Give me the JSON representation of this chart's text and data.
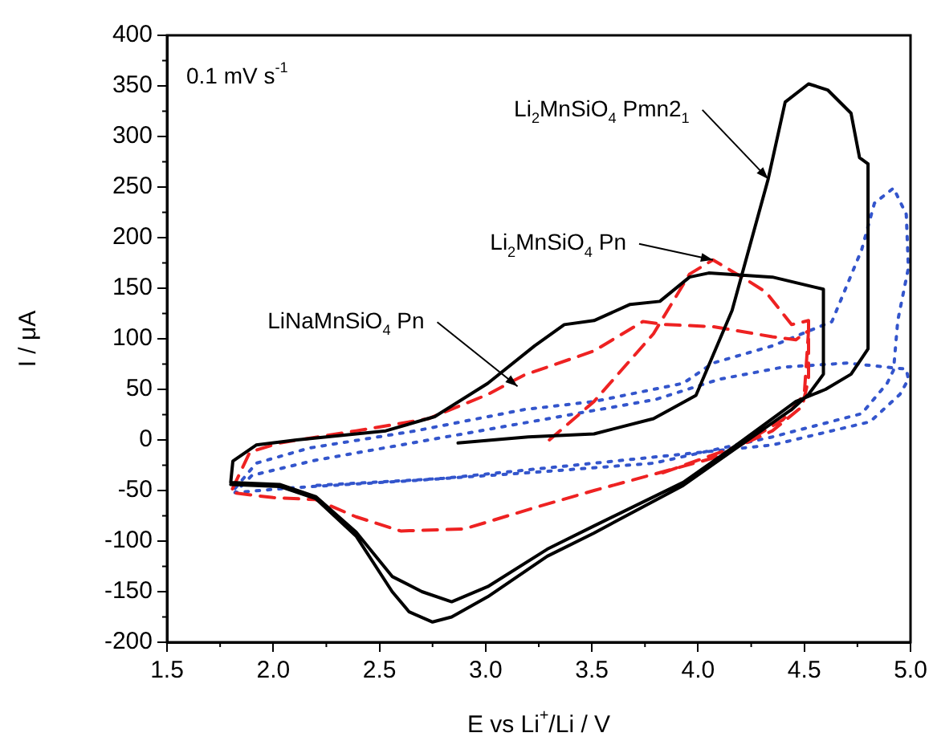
{
  "chart_data": {
    "type": "line",
    "xlabel": "E vs Li$^{+}$/Li / V",
    "ylabel": "I / μA",
    "xlim": [
      1.5,
      5.0
    ],
    "xticks": [
      {
        "value": 1.5,
        "label": "1.5"
      },
      {
        "value": 2.0,
        "label": "2.0"
      },
      {
        "value": 2.5,
        "label": "2.5"
      },
      {
        "value": 3.0,
        "label": "3.0"
      },
      {
        "value": 3.5,
        "label": "3.5"
      },
      {
        "value": 4.0,
        "label": "4.0"
      },
      {
        "value": 4.5,
        "label": "4.5"
      },
      {
        "value": 5.0,
        "label": "5.0"
      }
    ],
    "ylim": [
      -200,
      400
    ],
    "yticks": [
      -200,
      -150,
      -100,
      -50,
      0,
      50,
      100,
      150,
      200,
      250,
      300,
      350,
      400
    ],
    "grid": false,
    "legend": false,
    "marker": "none",
    "annotations": [
      "0.1 mV s$^{-1}$",
      {
        "text": "Li$_{2}$MnSiO$_{4}$ Pmn2$_{1}$",
        "x": 4.33,
        "y": 258
      },
      {
        "text": "Li$_{2}$MnSiO$_{4}$ Pn",
        "x": 4.07,
        "y": 178
      },
      {
        "text": "LiNaMnSiO$_{4}$ Pn",
        "x": 3.15,
        "y": 53
      }
    ],
    "series": [
      {
        "color": "#000000",
        "line_style": "solid",
        "x": [
          2.87,
          3.2,
          3.51,
          3.79,
          3.99,
          4.16,
          4.33,
          4.41,
          4.52,
          4.61,
          4.72,
          4.76,
          4.8,
          4.8,
          4.72,
          4.6,
          4.46,
          4.18,
          3.93,
          3.51,
          3.29,
          3.01,
          2.84,
          2.7,
          2.56,
          2.39,
          2.2,
          2.03,
          1.8,
          1.81,
          1.92,
          2.11,
          2.53,
          2.76,
          3.01,
          3.23,
          3.37,
          3.51,
          3.68,
          3.82,
          3.96,
          4.05,
          4.35,
          4.59,
          4.59,
          4.52,
          4.44,
          4.18,
          3.93,
          3.51,
          3.29,
          3.01,
          2.84,
          2.75,
          2.64,
          2.56,
          2.39,
          2.2,
          2.03,
          1.8
        ],
        "values": [
          -3,
          3,
          6,
          21,
          44,
          128,
          258,
          334,
          352,
          346,
          323,
          279,
          273,
          90,
          65,
          50,
          38,
          -5,
          -42,
          -85,
          -108,
          -145,
          -160,
          -150,
          -135,
          -91,
          -56,
          -44,
          -42,
          -21,
          -5,
          0,
          9,
          23,
          56,
          93,
          114,
          118,
          134,
          137,
          161,
          165,
          161,
          149,
          65,
          45,
          30,
          -8,
          -45,
          -92,
          -115,
          -155,
          -175,
          -180,
          -170,
          -150,
          -95,
          -58,
          -46,
          -44
        ]
      },
      {
        "color": "#ee2222",
        "line_style": "dashed",
        "x": [
          3.3,
          3.51,
          3.79,
          3.96,
          4.07,
          4.23,
          4.32,
          4.44,
          4.52,
          4.52,
          4.49,
          4.35,
          4.07,
          3.51,
          3.23,
          2.9,
          2.6,
          2.39,
          2.2,
          2.0,
          1.8,
          1.89,
          2.03,
          2.39,
          2.73,
          3.01,
          3.18,
          3.51,
          3.74,
          3.85,
          4.07,
          4.35,
          4.46,
          4.52,
          4.5,
          4.4,
          4.2,
          3.8
        ],
        "values": [
          0,
          38,
          105,
          164,
          178,
          158,
          146,
          114,
          118,
          60,
          33,
          9,
          -18,
          -50,
          -67,
          -88,
          -90,
          -76,
          -59,
          -57,
          -52,
          -12,
          -3,
          9,
          21,
          45,
          64,
          88,
          117,
          114,
          112,
          102,
          99,
          108,
          45,
          20,
          -5,
          -35
        ]
      },
      {
        "color": "#3355cc",
        "line_style": "dotted",
        "x": [
          1.82,
          1.92,
          2.17,
          2.67,
          3.18,
          3.51,
          3.93,
          4.07,
          4.35,
          4.63,
          4.77,
          4.83,
          4.92,
          4.98,
          4.99,
          4.94,
          4.92,
          4.89,
          4.77,
          4.35,
          3.79,
          3.23,
          2.67,
          2.11,
          1.82,
          1.9,
          2.2,
          2.6,
          3.0,
          3.4,
          3.8,
          4.1,
          4.4,
          4.7,
          4.98,
          4.99,
          4.95,
          4.81,
          4.35,
          3.51,
          2.8,
          2.2
        ],
        "values": [
          -48,
          -23,
          -8,
          9,
          30,
          38,
          56,
          76,
          93,
          117,
          188,
          234,
          249,
          223,
          170,
          118,
          69,
          56,
          26,
          3,
          -23,
          -32,
          -40,
          -47,
          -52,
          -35,
          -20,
          -5,
          10,
          25,
          40,
          60,
          72,
          76,
          70,
          60,
          45,
          18,
          -5,
          -23,
          -38,
          -45
        ]
      }
    ]
  }
}
